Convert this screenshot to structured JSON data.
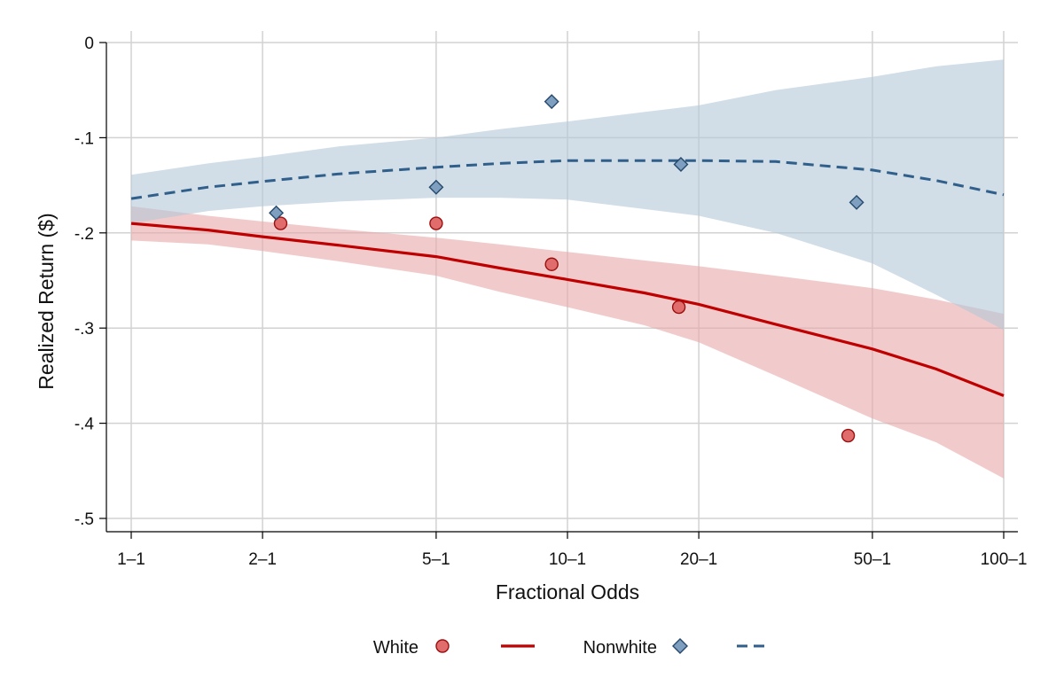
{
  "chart_data": {
    "type": "scatter",
    "title": "",
    "xlabel": "Fractional Odds",
    "ylabel": "Realized Return ($)",
    "xscale": "log",
    "xlim": [
      1,
      100
    ],
    "ylim": [
      -0.5,
      0
    ],
    "grid": true,
    "legend_position": "bottom",
    "x_ticks": [
      {
        "value": 1,
        "label": "1–1"
      },
      {
        "value": 2,
        "label": "2–1"
      },
      {
        "value": 5,
        "label": "5–1"
      },
      {
        "value": 10,
        "label": "10–1"
      },
      {
        "value": 20,
        "label": "20–1"
      },
      {
        "value": 50,
        "label": "50–1"
      },
      {
        "value": 100,
        "label": "100–1"
      }
    ],
    "y_ticks": [
      {
        "value": 0,
        "label": "0"
      },
      {
        "value": -0.1,
        "label": "-.1"
      },
      {
        "value": -0.2,
        "label": "-.2"
      },
      {
        "value": -0.3,
        "label": "-.3"
      },
      {
        "value": -0.4,
        "label": "-.4"
      },
      {
        "value": -0.5,
        "label": "-.5"
      }
    ],
    "series": [
      {
        "name": "White",
        "color": "#c00000",
        "marker_fill": "#e06c6c",
        "band_color": "#e8a8a8",
        "points": [
          {
            "x": 2.2,
            "y": -0.19
          },
          {
            "x": 5.0,
            "y": -0.19
          },
          {
            "x": 9.2,
            "y": -0.233
          },
          {
            "x": 18.0,
            "y": -0.278
          },
          {
            "x": 44.0,
            "y": -0.413
          }
        ],
        "fit": [
          {
            "x": 1,
            "y": -0.19,
            "lo": -0.208,
            "hi": -0.172
          },
          {
            "x": 1.5,
            "y": -0.197,
            "lo": -0.212,
            "hi": -0.182
          },
          {
            "x": 2,
            "y": -0.204,
            "lo": -0.219,
            "hi": -0.188
          },
          {
            "x": 3,
            "y": -0.213,
            "lo": -0.23,
            "hi": -0.196
          },
          {
            "x": 5,
            "y": -0.225,
            "lo": -0.245,
            "hi": -0.205
          },
          {
            "x": 7,
            "y": -0.237,
            "lo": -0.262,
            "hi": -0.212
          },
          {
            "x": 10,
            "y": -0.249,
            "lo": -0.278,
            "hi": -0.22
          },
          {
            "x": 15,
            "y": -0.263,
            "lo": -0.297,
            "hi": -0.229
          },
          {
            "x": 20,
            "y": -0.275,
            "lo": -0.315,
            "hi": -0.235
          },
          {
            "x": 30,
            "y": -0.296,
            "lo": -0.35,
            "hi": -0.245
          },
          {
            "x": 50,
            "y": -0.322,
            "lo": -0.395,
            "hi": -0.258
          },
          {
            "x": 70,
            "y": -0.343,
            "lo": -0.42,
            "hi": -0.27
          },
          {
            "x": 100,
            "y": -0.371,
            "lo": -0.458,
            "hi": -0.285
          }
        ]
      },
      {
        "name": "Nonwhite",
        "color": "#2f5f8a",
        "marker_fill": "#7f9fc0",
        "band_color": "#b4c8d9",
        "points": [
          {
            "x": 2.15,
            "y": -0.179
          },
          {
            "x": 5.0,
            "y": -0.152
          },
          {
            "x": 9.2,
            "y": -0.062
          },
          {
            "x": 18.2,
            "y": -0.128
          },
          {
            "x": 46.0,
            "y": -0.168
          }
        ],
        "fit": [
          {
            "x": 1,
            "y": -0.164,
            "lo": -0.19,
            "hi": -0.139
          },
          {
            "x": 1.5,
            "y": -0.152,
            "lo": -0.177,
            "hi": -0.127
          },
          {
            "x": 2,
            "y": -0.146,
            "lo": -0.172,
            "hi": -0.12
          },
          {
            "x": 3,
            "y": -0.138,
            "lo": -0.167,
            "hi": -0.109
          },
          {
            "x": 5,
            "y": -0.131,
            "lo": -0.163,
            "hi": -0.1
          },
          {
            "x": 7,
            "y": -0.127,
            "lo": -0.163,
            "hi": -0.091
          },
          {
            "x": 10,
            "y": -0.124,
            "lo": -0.165,
            "hi": -0.083
          },
          {
            "x": 15,
            "y": -0.124,
            "lo": -0.175,
            "hi": -0.073
          },
          {
            "x": 20,
            "y": -0.124,
            "lo": -0.182,
            "hi": -0.066
          },
          {
            "x": 30,
            "y": -0.125,
            "lo": -0.2,
            "hi": -0.05
          },
          {
            "x": 50,
            "y": -0.134,
            "lo": -0.232,
            "hi": -0.036
          },
          {
            "x": 70,
            "y": -0.145,
            "lo": -0.265,
            "hi": -0.025
          },
          {
            "x": 100,
            "y": -0.16,
            "lo": -0.302,
            "hi": -0.018
          }
        ]
      }
    ]
  },
  "legend": {
    "white_label": "White",
    "nonwhite_label": "Nonwhite"
  }
}
